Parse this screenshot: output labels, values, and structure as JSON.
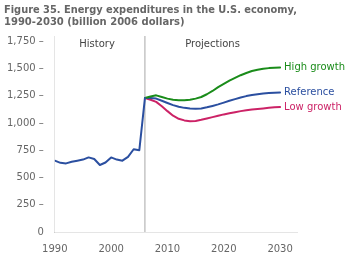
{
  "chart_data": {
    "type": "line",
    "title": [
      "Figure 35. Energy expenditures in the U.S. economy,",
      "1990-2030 (billion 2006 dollars)"
    ],
    "series": [
      {
        "x": [
          1990,
          1991,
          1992,
          1993,
          1994,
          1995,
          1996,
          1997,
          1998,
          1999,
          2000,
          2001,
          2002,
          2003,
          2004,
          2005,
          2006
        ],
        "values": [
          655,
          635,
          630,
          645,
          655,
          665,
          685,
          670,
          615,
          638,
          685,
          665,
          655,
          690,
          760,
          750,
          1230
        ],
        "color": "#2b4fa0"
      },
      {
        "name": "High growth",
        "x": [
          2006,
          2007,
          2008,
          2009,
          2010,
          2011,
          2012,
          2013,
          2014,
          2015,
          2016,
          2017,
          2018,
          2019,
          2020,
          2021,
          2022,
          2023,
          2024,
          2025,
          2026,
          2027,
          2028,
          2029,
          2030
        ],
        "values": [
          1230,
          1245,
          1255,
          1240,
          1225,
          1215,
          1210,
          1210,
          1215,
          1225,
          1240,
          1265,
          1295,
          1330,
          1360,
          1390,
          1415,
          1440,
          1460,
          1478,
          1490,
          1500,
          1505,
          1508,
          1510
        ],
        "color": "#1a8c1a"
      },
      {
        "name": "Reference",
        "x": [
          2006,
          2007,
          2008,
          2009,
          2010,
          2011,
          2012,
          2013,
          2014,
          2015,
          2016,
          2017,
          2018,
          2019,
          2020,
          2021,
          2022,
          2023,
          2024,
          2025,
          2026,
          2027,
          2028,
          2029,
          2030
        ],
        "values": [
          1230,
          1230,
          1225,
          1205,
          1185,
          1165,
          1150,
          1140,
          1135,
          1132,
          1135,
          1145,
          1158,
          1172,
          1188,
          1205,
          1220,
          1235,
          1248,
          1258,
          1265,
          1272,
          1276,
          1279,
          1280
        ],
        "color": "#2b4fa0"
      },
      {
        "name": "Low growth",
        "x": [
          2006,
          2007,
          2008,
          2009,
          2010,
          2011,
          2012,
          2013,
          2014,
          2015,
          2016,
          2017,
          2018,
          2019,
          2020,
          2021,
          2022,
          2023,
          2024,
          2025,
          2026,
          2027,
          2028,
          2029,
          2030
        ],
        "values": [
          1230,
          1215,
          1195,
          1155,
          1110,
          1068,
          1040,
          1025,
          1018,
          1020,
          1030,
          1042,
          1055,
          1068,
          1080,
          1090,
          1100,
          1110,
          1118,
          1125,
          1130,
          1135,
          1140,
          1145,
          1148
        ],
        "color": "#cc2266"
      }
    ],
    "xlim": [
      1990,
      2033
    ],
    "xticks": [
      1990,
      2000,
      2010,
      2020,
      2030
    ],
    "ylim": [
      0,
      1800
    ],
    "yticks": [
      0,
      {
        "value": 250,
        "label": "250 –"
      },
      {
        "value": 500,
        "label": "500 –"
      },
      {
        "value": 750,
        "label": "750 –"
      },
      {
        "value": 1000,
        "label": "1,000 –"
      },
      {
        "value": 1250,
        "label": "1,250 –"
      },
      {
        "value": 1500,
        "label": "1,500 –"
      },
      {
        "value": 1750,
        "label": "1,750 –"
      }
    ],
    "grid": false,
    "annotations": [
      {
        "text": "History",
        "x": 1997.5,
        "y": 1720
      },
      {
        "text": "Projections",
        "x": 2018,
        "y": 1720
      }
    ],
    "vlines": [
      2006
    ]
  }
}
